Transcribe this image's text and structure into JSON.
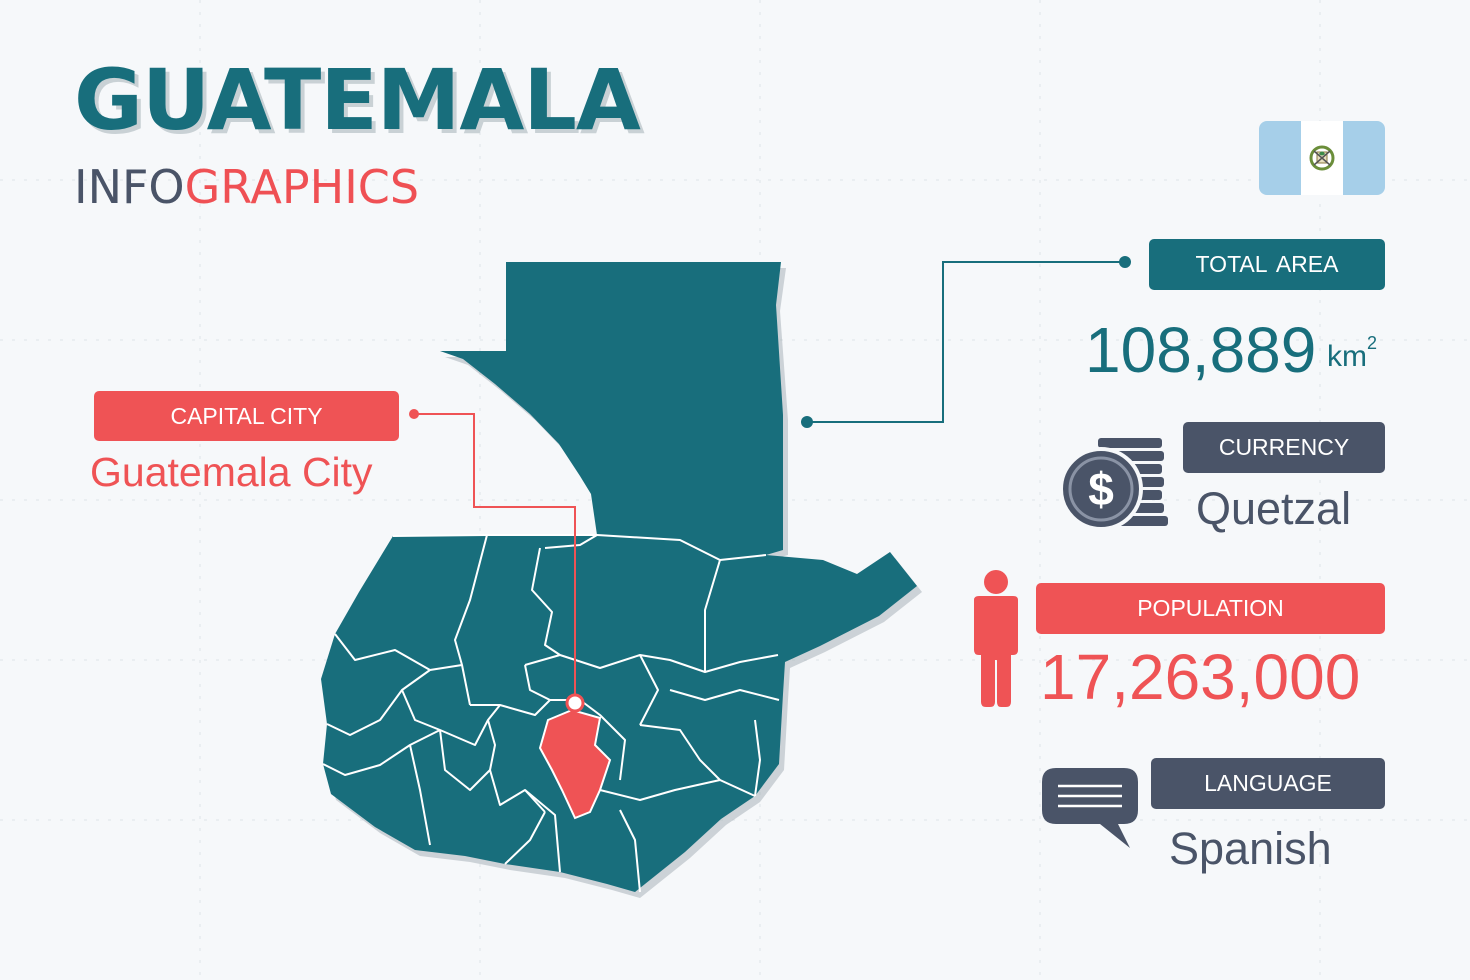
{
  "title": {
    "country": "GUATEMALA",
    "sub_part1": "INFO",
    "sub_part2": "GRAPHICS"
  },
  "flag": {
    "country": "Guatemala",
    "colors": [
      "#a6cfe9",
      "#ffffff",
      "#a6cfe9"
    ]
  },
  "capital": {
    "label": "CAPITAL CITY",
    "value": "Guatemala City"
  },
  "total_area": {
    "label": "TOTAL AREA",
    "value": "108,889",
    "unit": "km",
    "unit_sup": "2"
  },
  "currency": {
    "label": "CURRENCY",
    "value": "Quetzal",
    "icon": "coins-dollar-icon"
  },
  "population": {
    "label": "POPULATION",
    "value": "17,263,000",
    "icon": "person-icon"
  },
  "language": {
    "label": "LANGUAGE",
    "value": "Spanish",
    "icon": "speech-bubble-icon"
  },
  "colors": {
    "teal": "#186e7c",
    "red": "#ef5355",
    "slate": "#4a5468",
    "background": "#f6f8fa"
  }
}
